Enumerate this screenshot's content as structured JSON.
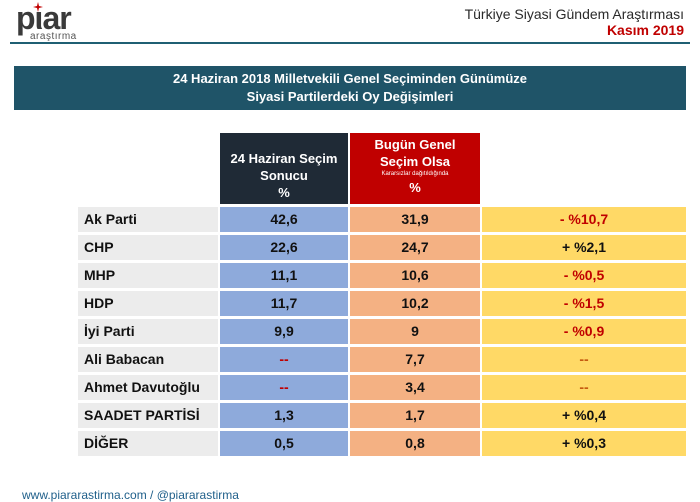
{
  "logo": {
    "word": "pιar",
    "sub": "araştırma"
  },
  "header": {
    "title": "Türkiye Siyasi Gündem Araştırması",
    "date": "Kasım 2019"
  },
  "banner": {
    "line1": "24 Haziran 2018 Milletvekili Genel Seçiminden Günümüze",
    "line2": "Siyasi Partilerdeki Oy Değişimleri"
  },
  "columns": {
    "a": {
      "line1": "24 Haziran Seçim",
      "line2": "Sonucu",
      "unit": "%"
    },
    "b": {
      "line1": "Bugün Genel",
      "line2": "Seçim Olsa",
      "note": "Kararsızlar dağıtıldığında",
      "unit": "%"
    }
  },
  "rows": [
    {
      "party": "Ak Parti",
      "a": "42,6",
      "b": "31,9",
      "d": "- %10,7"
    },
    {
      "party": "CHP",
      "a": "22,6",
      "b": "24,7",
      "d": "+ %2,1"
    },
    {
      "party": "MHP",
      "a": "11,1",
      "b": "10,6",
      "d": "- %0,5"
    },
    {
      "party": "HDP",
      "a": "11,7",
      "b": "10,2",
      "d": "- %1,5"
    },
    {
      "party": "İyi Parti",
      "a": "9,9",
      "b": "9",
      "d": "- %0,9"
    },
    {
      "party": "Ali Babacan",
      "a": "--",
      "b": "7,7",
      "d": "--"
    },
    {
      "party": "Ahmet Davutoğlu",
      "a": "--",
      "b": "3,4",
      "d": "--"
    },
    {
      "party": "SAADET PARTİSİ",
      "a": "1,3",
      "b": "1,7",
      "d": "+ %0,4"
    },
    {
      "party": "DİĞER",
      "a": "0,5",
      "b": "0,8",
      "d": "+ %0,3"
    }
  ],
  "footer": {
    "text": "www.piararastirma.com / @piararastirma"
  },
  "colors": {
    "accent": "#1f5468",
    "red": "#c00000",
    "colA": "#8eaadb",
    "colB": "#f4b183",
    "colD": "#ffd966"
  }
}
